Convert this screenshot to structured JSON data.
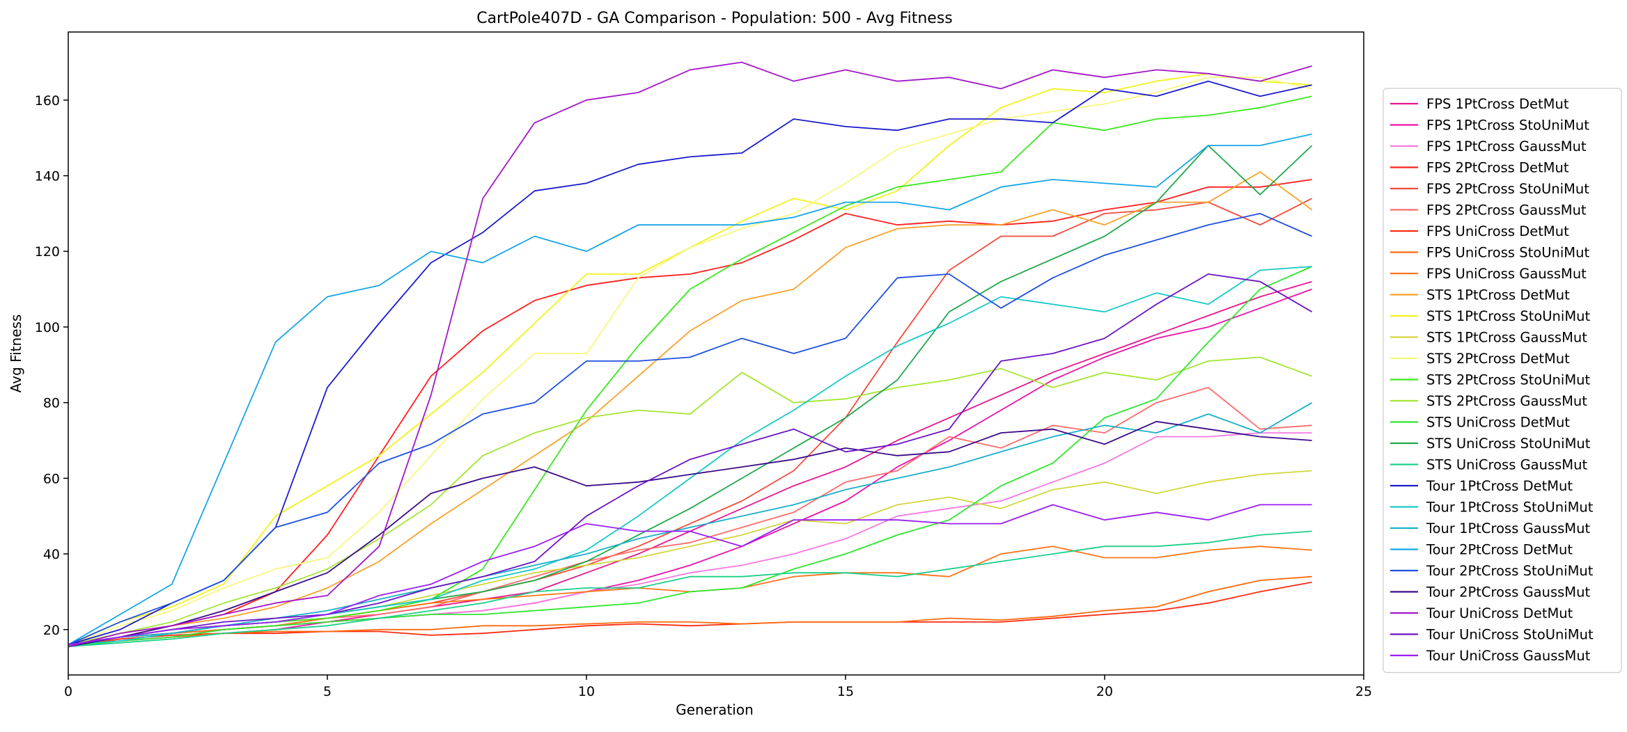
{
  "chart_data": {
    "type": "line",
    "title": "CartPole407D - GA Comparison - Population: 500 - Avg Fitness",
    "xlabel": "Generation",
    "ylabel": "Avg Fitness",
    "xlim": [
      0,
      25
    ],
    "ylim": [
      8,
      178
    ],
    "xticks": [
      "0",
      "5",
      "10",
      "15",
      "20",
      "25"
    ],
    "yticks": [
      "20",
      "40",
      "60",
      "80",
      "100",
      "120",
      "140",
      "160"
    ],
    "grid": false,
    "legend_position": "right",
    "x": [
      0,
      1,
      2,
      3,
      4,
      5,
      6,
      7,
      8,
      9,
      10,
      11,
      12,
      13,
      14,
      15,
      16,
      17,
      18,
      19,
      20,
      21,
      22,
      23,
      24
    ],
    "series": [
      {
        "name": "FPS 1PtCross DetMut",
        "color": "#e6178f",
        "values": [
          16,
          18,
          19,
          20,
          21,
          22,
          24,
          26,
          28,
          30,
          35,
          40,
          46,
          52,
          58,
          63,
          70,
          76,
          82,
          88,
          93,
          98,
          103,
          108,
          112
        ]
      },
      {
        "name": "FPS 1PtCross StoUniMut",
        "color": "#ea10a8",
        "values": [
          16,
          17,
          18,
          19,
          20,
          22,
          23,
          24,
          25,
          27,
          30,
          33,
          37,
          42,
          48,
          54,
          63,
          70,
          78,
          86,
          92,
          97,
          100,
          105,
          110
        ]
      },
      {
        "name": "FPS 1PtCross GaussMut",
        "color": "#f779e2",
        "values": [
          16,
          17,
          18,
          20,
          21,
          22,
          23,
          24,
          25,
          27,
          30,
          32,
          35,
          37,
          40,
          44,
          50,
          52,
          54,
          59,
          64,
          71,
          71,
          72,
          72
        ]
      },
      {
        "name": "FPS 2PtCross DetMut",
        "color": "#ff1e1e",
        "values": [
          15.5,
          18,
          21,
          24,
          30,
          45,
          66,
          87,
          99,
          107,
          111,
          113,
          114,
          117,
          123,
          130,
          127,
          128,
          127,
          128,
          131,
          133,
          137,
          137,
          139
        ]
      },
      {
        "name": "FPS 2PtCross StoUniMut",
        "color": "#f44a3b",
        "values": [
          15.5,
          18,
          19,
          21,
          22,
          23,
          25,
          27,
          30,
          33,
          37,
          42,
          48,
          54,
          62,
          76,
          96,
          115,
          124,
          124,
          130,
          131,
          133,
          127,
          134
        ]
      },
      {
        "name": "FPS 2PtCross GaussMut",
        "color": "#ff6b6b",
        "values": [
          16,
          18,
          19,
          20,
          21,
          23,
          24,
          26,
          30,
          34,
          38,
          41,
          43,
          47,
          51,
          59,
          62,
          71,
          68,
          74,
          72,
          80,
          84,
          73,
          74
        ]
      },
      {
        "name": "FPS UniCross DetMut",
        "color": "#ff2a0d",
        "values": [
          15.5,
          17.5,
          18.5,
          19,
          19,
          19.5,
          19.5,
          18.5,
          19,
          20,
          21,
          21.5,
          21,
          21.5,
          22,
          22,
          22,
          22,
          22,
          23,
          24,
          25,
          27,
          30,
          32.5
        ]
      },
      {
        "name": "FPS UniCross StoUniMut",
        "color": "#ff6a0d",
        "values": [
          15.5,
          17,
          18,
          19,
          19.5,
          19.5,
          20,
          20,
          21,
          21,
          21.5,
          22,
          22,
          21.5,
          22,
          22,
          22,
          23,
          22.5,
          23.5,
          25,
          26,
          30,
          33,
          34
        ]
      },
      {
        "name": "FPS UniCross GaussMut",
        "color": "#ff7518",
        "values": [
          16,
          18,
          19,
          20,
          21,
          23,
          25,
          27,
          28,
          29,
          30,
          31,
          30,
          31,
          34,
          35,
          35,
          34,
          40,
          42,
          39,
          39,
          41,
          42,
          41
        ]
      },
      {
        "name": "STS 1PtCross DetMut",
        "color": "#f7a22a",
        "values": [
          15.5,
          18,
          21,
          23,
          26,
          31,
          38,
          48,
          57,
          66,
          75,
          87,
          99,
          107,
          110,
          121,
          126,
          127,
          127,
          131,
          127,
          133,
          133,
          141,
          131
        ]
      },
      {
        "name": "STS 1PtCross StoUniMut",
        "color": "#f2f21a",
        "values": [
          16,
          22,
          26,
          32,
          50,
          58,
          66,
          77,
          88,
          101,
          114,
          114,
          121,
          128,
          134,
          131,
          136,
          148,
          158,
          163,
          162,
          165,
          167,
          165,
          164
        ]
      },
      {
        "name": "STS 1PtCross GaussMut",
        "color": "#d2d63a",
        "values": [
          16,
          18,
          20,
          21,
          22,
          24,
          26,
          29,
          32,
          35,
          37,
          39,
          42,
          45,
          49,
          48,
          53,
          55,
          52,
          57,
          59,
          56,
          59,
          61,
          62
        ]
      },
      {
        "name": "STS 2PtCross DetMut",
        "color": "#f7f77e",
        "values": [
          16,
          21,
          25,
          31,
          36,
          39,
          51,
          66,
          81,
          93,
          93,
          113,
          121,
          126,
          130,
          138,
          147,
          151,
          155,
          157,
          159,
          162,
          166,
          166,
          163
        ]
      },
      {
        "name": "STS 2PtCross StoUniMut",
        "color": "#39e81c",
        "values": [
          15.5,
          18,
          20,
          21,
          22,
          23,
          25,
          28,
          36,
          57,
          78,
          95,
          110,
          118,
          125,
          132,
          137,
          139,
          141,
          154,
          152,
          155,
          156,
          158,
          161
        ]
      },
      {
        "name": "STS 2PtCross GaussMut",
        "color": "#a4e632",
        "values": [
          16,
          19,
          22,
          27,
          31,
          36,
          44,
          53,
          66,
          72,
          76,
          78,
          77,
          88,
          80,
          81,
          84,
          86,
          89,
          84,
          88,
          86,
          91,
          92,
          87
        ]
      },
      {
        "name": "STS UniCross DetMut",
        "color": "#2ee62e",
        "values": [
          15.5,
          17,
          18,
          20,
          21,
          22,
          23,
          24,
          24,
          25,
          26,
          27,
          30,
          31,
          36,
          40,
          45,
          49,
          58,
          64,
          76,
          81,
          96,
          110,
          116
        ]
      },
      {
        "name": "STS UniCross StoUniMut",
        "color": "#1fa84a",
        "values": [
          16,
          18,
          19,
          21,
          22,
          24,
          26,
          28,
          30,
          33,
          38,
          45,
          52,
          60,
          68,
          76,
          86,
          104,
          112,
          118,
          124,
          133,
          148,
          135,
          148
        ]
      },
      {
        "name": "STS UniCross GaussMut",
        "color": "#1ccf8a",
        "values": [
          15.5,
          16.5,
          17.5,
          19,
          20,
          21,
          23,
          25,
          27,
          30,
          31,
          31,
          34,
          34,
          35,
          35,
          34,
          36,
          38,
          40,
          42,
          42,
          43,
          45,
          46
        ]
      },
      {
        "name": "Tour 1PtCross DetMut",
        "color": "#1a1acc",
        "values": [
          16,
          20,
          27,
          33,
          47,
          84,
          101,
          117,
          125,
          136,
          138,
          143,
          145,
          146,
          155,
          153,
          152,
          155,
          155,
          154,
          163,
          161,
          165,
          161,
          164
        ]
      },
      {
        "name": "Tour 1PtCross StoUniMut",
        "color": "#18c8c8",
        "values": [
          16,
          17,
          19,
          21,
          22,
          24,
          26,
          28,
          33,
          36,
          41,
          50,
          60,
          70,
          78,
          87,
          95,
          101,
          108,
          106,
          104,
          109,
          106,
          115,
          116
        ]
      },
      {
        "name": "Tour 1PtCross GaussMut",
        "color": "#17b0c8",
        "values": [
          16,
          18,
          19,
          21,
          23,
          25,
          28,
          31,
          34,
          37,
          40,
          44,
          47,
          50,
          53,
          57,
          60,
          63,
          67,
          71,
          74,
          72,
          77,
          72,
          80
        ]
      },
      {
        "name": "Tour 2PtCross DetMut",
        "color": "#15a6e8",
        "values": [
          16,
          24,
          32,
          64,
          96,
          108,
          111,
          120,
          117,
          124,
          120,
          127,
          127,
          127,
          129,
          133,
          133,
          131,
          137,
          139,
          138,
          137,
          148,
          148,
          151
        ]
      },
      {
        "name": "Tour 2PtCross StoUniMut",
        "color": "#1e50e0",
        "values": [
          16,
          22,
          27,
          33,
          47,
          51,
          64,
          69,
          77,
          80,
          91,
          91,
          92,
          97,
          93,
          97,
          113,
          114,
          105,
          113,
          119,
          123,
          127,
          130,
          124
        ]
      },
      {
        "name": "Tour 2PtCross GaussMut",
        "color": "#3a0a88",
        "values": [
          15.5,
          18,
          21,
          25,
          30,
          35,
          45,
          56,
          60,
          63,
          58,
          59,
          61,
          63,
          65,
          68,
          66,
          67,
          72,
          73,
          69,
          75,
          73,
          71,
          70
        ]
      },
      {
        "name": "Tour UniCross DetMut",
        "color": "#a416c8",
        "values": [
          15.5,
          19,
          21,
          24,
          27,
          29,
          42,
          82,
          134,
          154,
          160,
          162,
          168,
          170,
          165,
          168,
          165,
          166,
          163,
          168,
          166,
          168,
          167,
          165,
          169
        ]
      },
      {
        "name": "Tour UniCross StoUniMut",
        "color": "#6b14c4",
        "values": [
          16,
          18,
          20,
          22,
          23,
          24,
          27,
          31,
          34,
          38,
          50,
          58,
          65,
          69,
          73,
          67,
          69,
          73,
          91,
          93,
          97,
          106,
          114,
          112,
          104
        ]
      },
      {
        "name": "Tour UniCross GaussMut",
        "color": "#9b1ef2",
        "values": [
          16,
          18,
          20,
          21,
          22,
          24,
          29,
          32,
          38,
          42,
          48,
          46,
          46,
          42,
          49,
          49,
          49,
          48,
          48,
          53,
          49,
          51,
          49,
          53,
          53
        ]
      }
    ]
  }
}
